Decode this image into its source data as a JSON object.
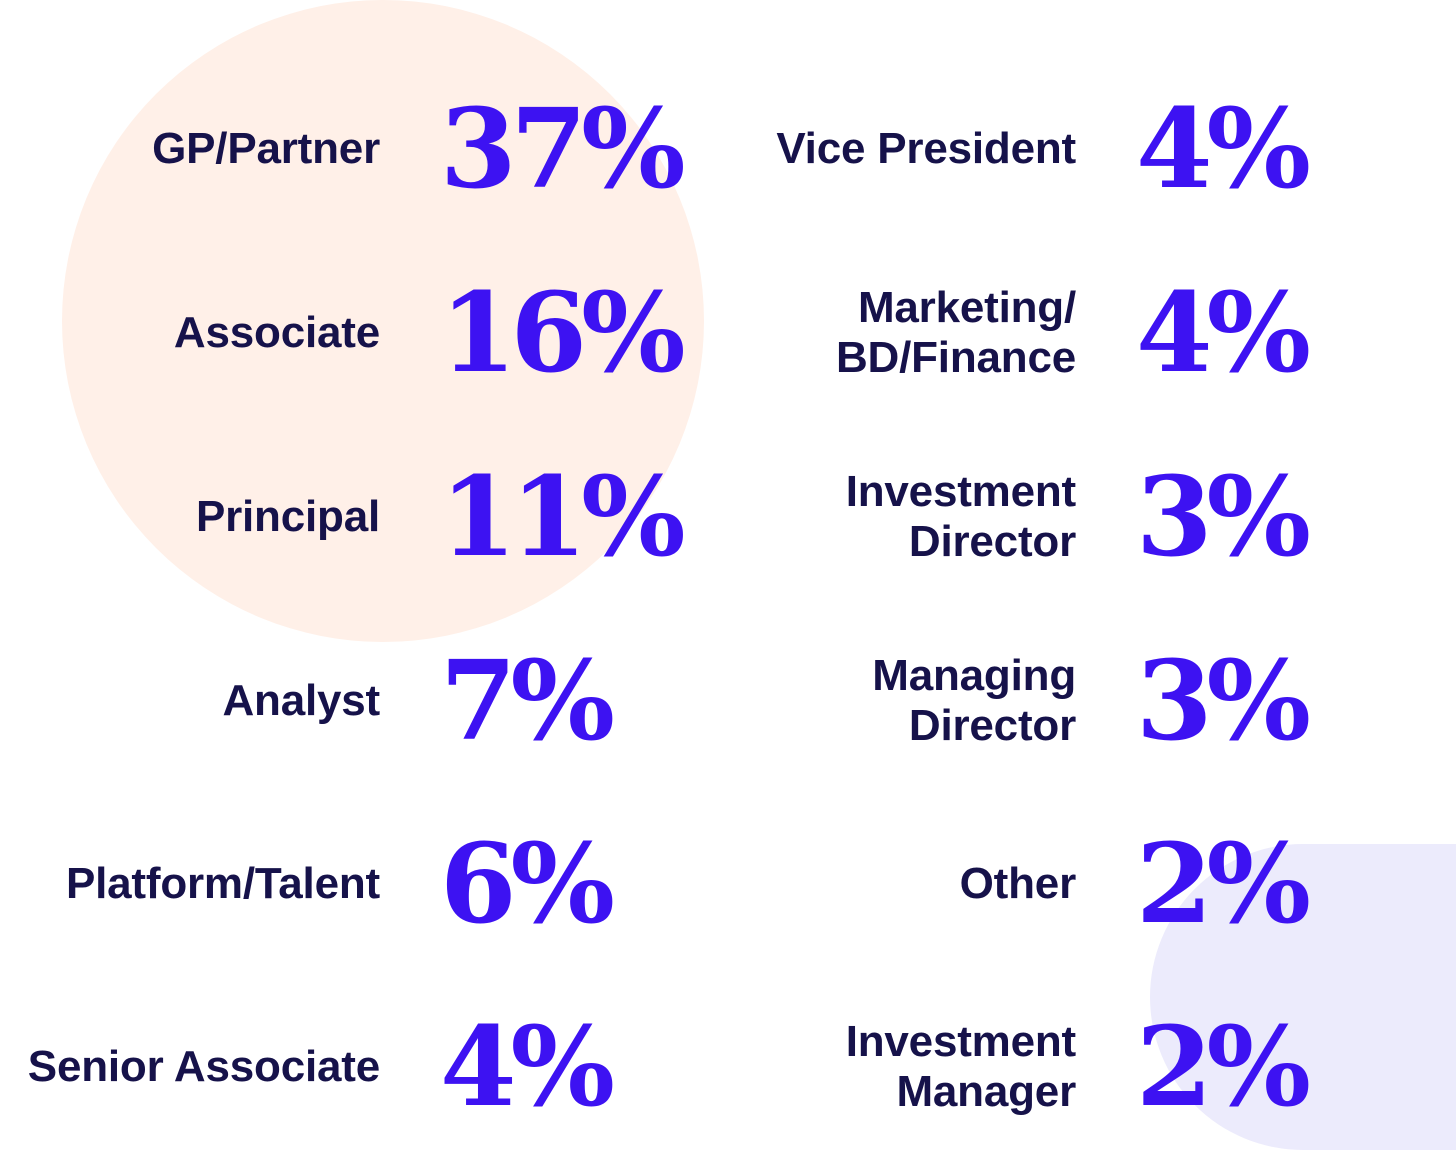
{
  "accent_color": "#3d12f2",
  "label_color": "#16124a",
  "left_column": [
    {
      "label": "GP/Partner",
      "value": "37%"
    },
    {
      "label": "Associate",
      "value": "16%"
    },
    {
      "label": "Principal",
      "value": "11%"
    },
    {
      "label": "Analyst",
      "value": "7%"
    },
    {
      "label": "Platform/Talent",
      "value": "6%"
    },
    {
      "label": "Senior Associate",
      "value": "4%"
    }
  ],
  "right_column": [
    {
      "label": "Vice President",
      "value": "4%"
    },
    {
      "label": "Marketing/\nBD/Finance",
      "value": "4%"
    },
    {
      "label": "Investment\nDirector",
      "value": "3%"
    },
    {
      "label": "Managing\nDirector",
      "value": "3%"
    },
    {
      "label": "Other",
      "value": "2%"
    },
    {
      "label": "Investment\nManager",
      "value": "2%"
    }
  ]
}
